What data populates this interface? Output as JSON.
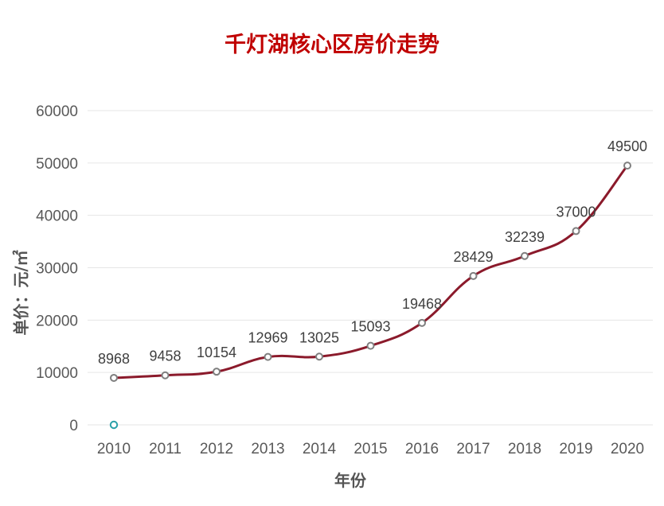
{
  "chart_data": {
    "type": "line",
    "title": "千灯湖核心区房价走势",
    "xlabel": "年份",
    "ylabel": "单价：元/㎡",
    "categories": [
      "2010",
      "2011",
      "2012",
      "2013",
      "2014",
      "2015",
      "2016",
      "2017",
      "2018",
      "2019",
      "2020"
    ],
    "series": [
      {
        "values": [
          8968,
          9458,
          10154,
          12969,
          13025,
          15093,
          19468,
          28429,
          32239,
          37000,
          49500
        ]
      }
    ],
    "data_labels": [
      "8968",
      "9458",
      "10154",
      "12969",
      "13025",
      "15093",
      "19468",
      "28429",
      "32239",
      "37000",
      "49500"
    ],
    "ylim": [
      0,
      60000
    ],
    "yticks": [
      "0",
      "10000",
      "20000",
      "30000",
      "40000",
      "50000",
      "60000"
    ],
    "grid": true,
    "legend": "none",
    "colors": {
      "line": "#8b1a2b",
      "title": "#c00000",
      "marker_fill": "#ffffff",
      "marker_stroke": "#7f7f7f",
      "origin_marker": "#2aa0a8"
    }
  }
}
